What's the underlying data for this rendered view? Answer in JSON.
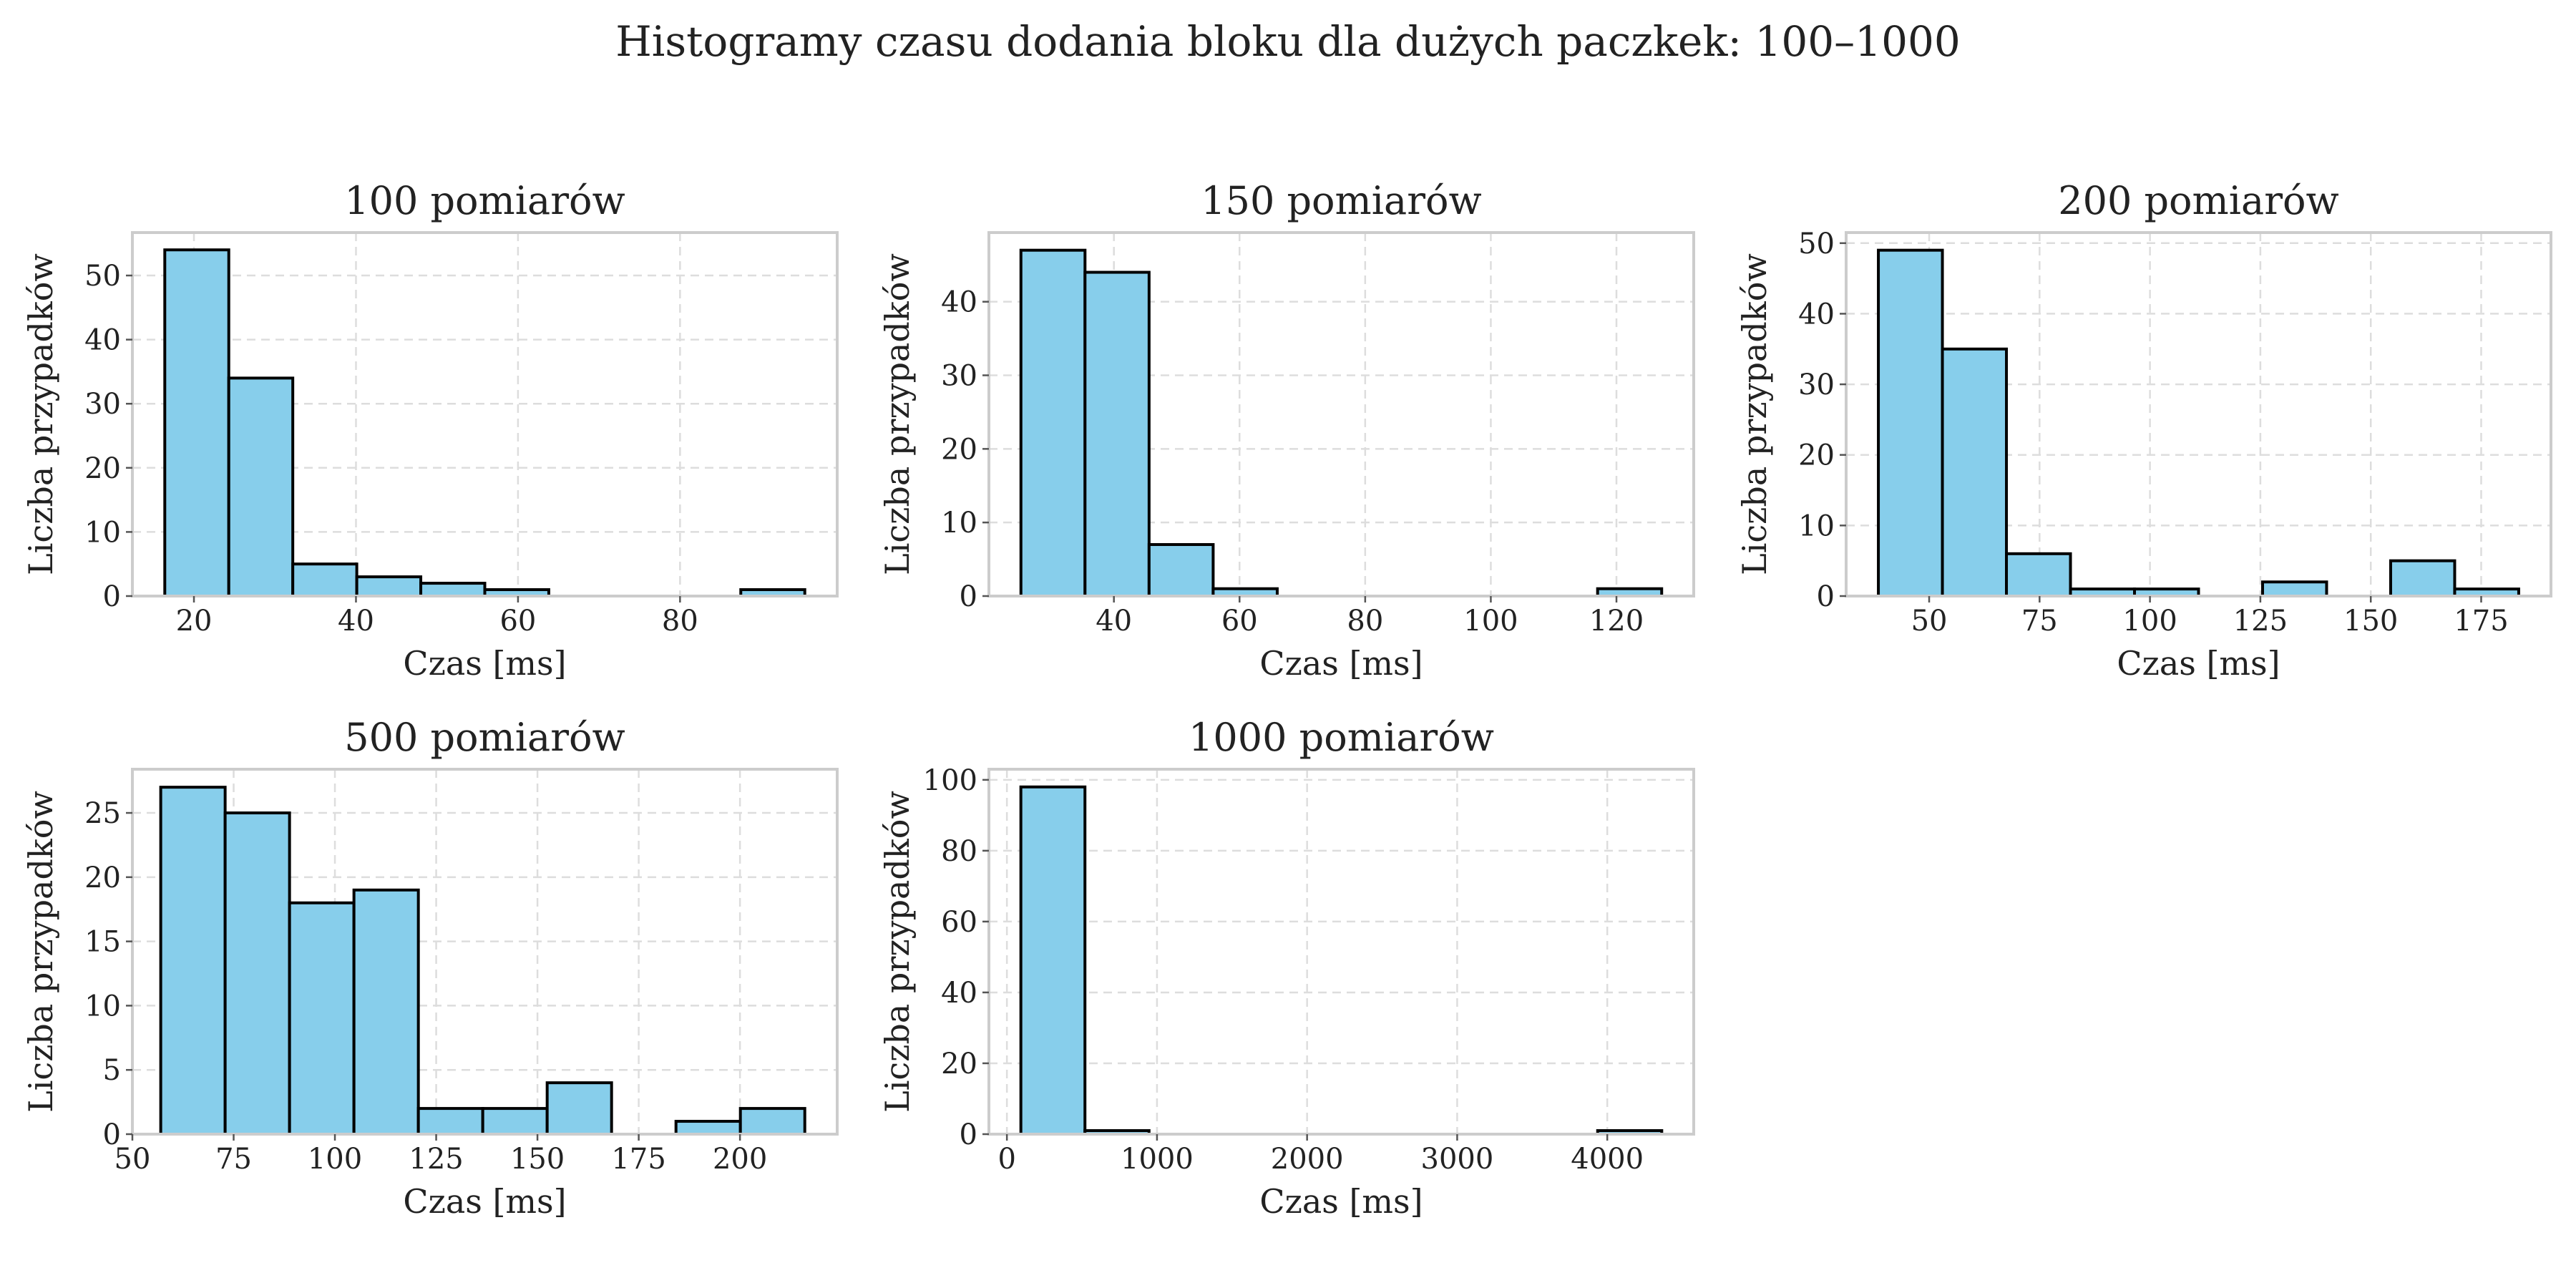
{
  "figure": {
    "suptitle": "Histogramy czasu dodania bloku dla dużych paczkek: 100–1000"
  },
  "style": {
    "bar_color": "#87ceeb",
    "edge_color": "#000000"
  },
  "chart_data": [
    {
      "type": "bar",
      "title": "100 pomiarów",
      "xlabel": "Czas [ms]",
      "ylabel": "Liczba przypadków",
      "bin_edges": [
        16.4,
        24.3,
        32.2,
        40.1,
        48.0,
        55.9,
        63.8,
        71.7,
        79.6,
        87.5,
        95.4
      ],
      "values": [
        54,
        34,
        5,
        3,
        2,
        1,
        0,
        0,
        0,
        1
      ],
      "xlim": [
        12.4,
        99.4
      ],
      "ylim": [
        0,
        56.7
      ],
      "xticks": [
        20,
        40,
        60,
        80
      ],
      "yticks": [
        0,
        10,
        20,
        30,
        40,
        50
      ],
      "grid": true
    },
    {
      "type": "bar",
      "title": "150 pomiarów",
      "xlabel": "Czas [ms]",
      "ylabel": "Liczba przypadków",
      "bin_edges": [
        25.2,
        35.4,
        45.6,
        55.8,
        66.0,
        76.2,
        86.4,
        96.6,
        106.8,
        117.0,
        127.2
      ],
      "values": [
        47,
        44,
        7,
        1,
        0,
        0,
        0,
        0,
        0,
        1
      ],
      "xlim": [
        20.1,
        132.3
      ],
      "ylim": [
        0,
        49.4
      ],
      "xticks": [
        40,
        60,
        80,
        100,
        120
      ],
      "yticks": [
        0,
        10,
        20,
        30,
        40
      ],
      "grid": true
    },
    {
      "type": "bar",
      "title": "200 pomiarów",
      "xlabel": "Czas [ms]",
      "ylabel": "Liczba przypadków",
      "bin_edges": [
        38.5,
        53.0,
        67.5,
        82.0,
        96.5,
        111.0,
        125.5,
        140.0,
        154.5,
        169.0,
        183.5
      ],
      "values": [
        49,
        35,
        6,
        1,
        1,
        0,
        2,
        0,
        5,
        1
      ],
      "xlim": [
        31.2,
        190.8
      ],
      "ylim": [
        0,
        51.5
      ],
      "xticks": [
        50,
        75,
        100,
        125,
        150,
        175
      ],
      "yticks": [
        0,
        10,
        20,
        30,
        40,
        50
      ],
      "grid": true
    },
    {
      "type": "bar",
      "title": "500 pomiarów",
      "xlabel": "Czas [ms]",
      "ylabel": "Liczba przypadków",
      "bin_edges": [
        57.0,
        72.9,
        88.8,
        104.7,
        120.6,
        136.5,
        152.4,
        168.3,
        184.2,
        200.1,
        216.0
      ],
      "values": [
        27,
        25,
        18,
        19,
        2,
        2,
        4,
        0,
        1,
        2
      ],
      "xlim": [
        50,
        224
      ],
      "ylim": [
        0,
        28.4
      ],
      "xticks": [
        50,
        75,
        100,
        125,
        150,
        175,
        200
      ],
      "yticks": [
        0,
        5,
        10,
        15,
        20,
        25
      ],
      "grid": true
    },
    {
      "type": "bar",
      "title": "1000 pomiarów",
      "xlabel": "Czas [ms]",
      "ylabel": "Liczba przypadków",
      "bin_edges": [
        93,
        520,
        947,
        1374,
        1801,
        2228,
        2655,
        3082,
        3509,
        3936,
        4363
      ],
      "values": [
        98,
        1,
        0,
        0,
        0,
        0,
        0,
        0,
        0,
        1
      ],
      "xlim": [
        -120,
        4576
      ],
      "ylim": [
        0,
        103
      ],
      "xticks": [
        0,
        1000,
        2000,
        3000,
        4000
      ],
      "yticks": [
        0,
        20,
        40,
        60,
        80,
        100
      ],
      "grid": true
    }
  ]
}
